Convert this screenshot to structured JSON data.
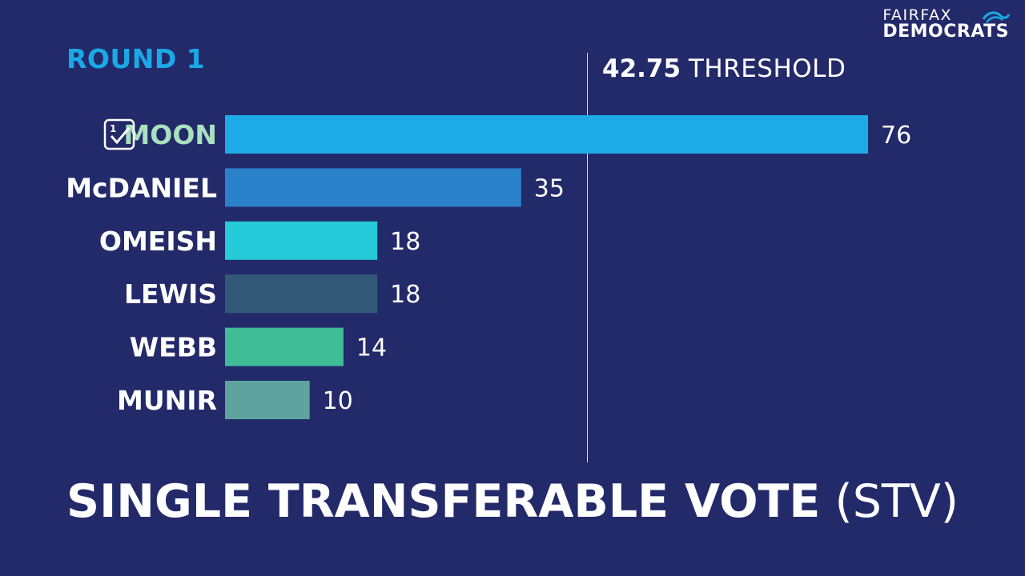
{
  "round_label": "ROUND 1",
  "logo": {
    "line1": "FAIRFAX",
    "line2": "DEMOCRATS"
  },
  "threshold": {
    "value": "42.75",
    "label": "THRESHOLD"
  },
  "footer": {
    "main": "SINGLE TRANSFERABLE VOTE",
    "paren": "(STV)"
  },
  "chart_data": {
    "type": "bar",
    "orientation": "horizontal",
    "title": "ROUND 1",
    "categories": [
      "MOON",
      "McDANIEL",
      "OMEISH",
      "LEWIS",
      "WEBB",
      "MUNIR"
    ],
    "values": [
      76,
      35,
      18,
      18,
      14,
      10
    ],
    "colors": [
      "#1eaae6",
      "#2a82cb",
      "#26cad8",
      "#325a78",
      "#40bc97",
      "#5fa39e"
    ],
    "threshold": 42.75,
    "elected": [
      "MOON"
    ],
    "elected_color": "#a9e0bf",
    "label_color": "#ffffff",
    "grid": false,
    "legend": "none"
  }
}
